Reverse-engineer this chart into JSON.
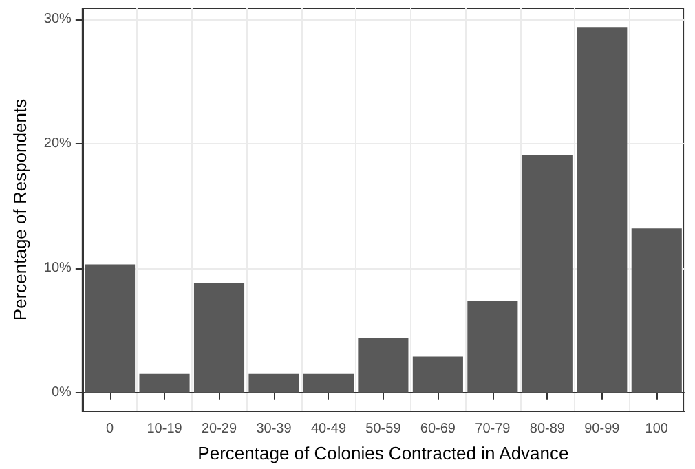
{
  "chart_data": {
    "type": "bar",
    "xlabel": "Percentage of Colonies Contracted in Advance",
    "ylabel": "Percentage of Respondents",
    "categories": [
      "0",
      "10-19",
      "20-29",
      "30-39",
      "40-49",
      "50-59",
      "60-69",
      "70-79",
      "80-89",
      "90-99",
      "100"
    ],
    "values": [
      10.3,
      1.5,
      8.8,
      1.5,
      1.5,
      4.4,
      2.9,
      7.4,
      19.1,
      29.4,
      13.2
    ],
    "color": "#595959",
    "ylim": [
      -1.5,
      30.9
    ],
    "yticks": [
      {
        "value": 0,
        "label": "0%"
      },
      {
        "value": 10,
        "label": "10%"
      },
      {
        "value": 20,
        "label": "20%"
      },
      {
        "value": 30,
        "label": "30%"
      }
    ],
    "grid": true
  }
}
